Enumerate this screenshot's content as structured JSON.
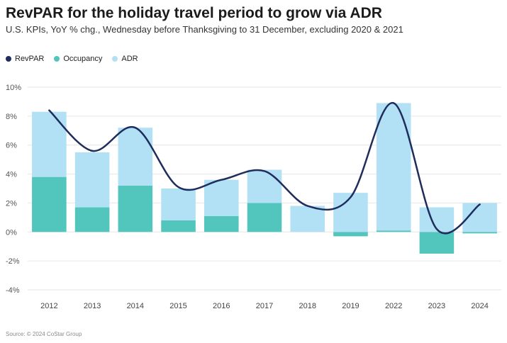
{
  "title": "RevPAR for the holiday travel period to grow via ADR",
  "subtitle": "U.S. KPIs, YoY % chg., Wednesday before Thanksgiving to 31 December, excluding 2020 & 2021",
  "source": "Source: © 2024 CoStar Group",
  "colors": {
    "revpar": "#1f2d5c",
    "occupancy": "#52c5bd",
    "adr": "#b2e0f5"
  },
  "legend": [
    {
      "label": "RevPAR",
      "color": "#1f2d5c"
    },
    {
      "label": "Occupancy",
      "color": "#52c5bd"
    },
    {
      "label": "ADR",
      "color": "#b2e0f5"
    }
  ],
  "chart_data": {
    "type": "bar",
    "stacked": true,
    "categories": [
      "2012",
      "2013",
      "2014",
      "2015",
      "2016",
      "2017",
      "2018",
      "2019",
      "2022",
      "2023",
      "2024"
    ],
    "series": [
      {
        "name": "Occupancy",
        "type": "bar",
        "values": [
          3.8,
          1.7,
          3.2,
          0.8,
          1.1,
          2.0,
          0.0,
          -0.3,
          0.1,
          -1.5,
          -0.1
        ]
      },
      {
        "name": "ADR",
        "type": "bar",
        "values": [
          4.5,
          3.8,
          4.0,
          2.2,
          2.5,
          2.3,
          1.8,
          2.7,
          8.8,
          1.7,
          2.0
        ]
      },
      {
        "name": "RevPAR",
        "type": "line",
        "values": [
          8.4,
          5.6,
          7.2,
          3.1,
          3.6,
          4.2,
          1.8,
          2.4,
          8.9,
          0.2,
          1.9
        ]
      }
    ],
    "ylim": [
      -4,
      10
    ],
    "yticks": [
      -4,
      -2,
      0,
      2,
      4,
      6,
      8,
      10
    ],
    "ytick_labels": [
      "-4%",
      "-2%",
      "0%",
      "2%",
      "4%",
      "6%",
      "8%",
      "10%"
    ],
    "grid": true,
    "legend_position": "top-left"
  }
}
